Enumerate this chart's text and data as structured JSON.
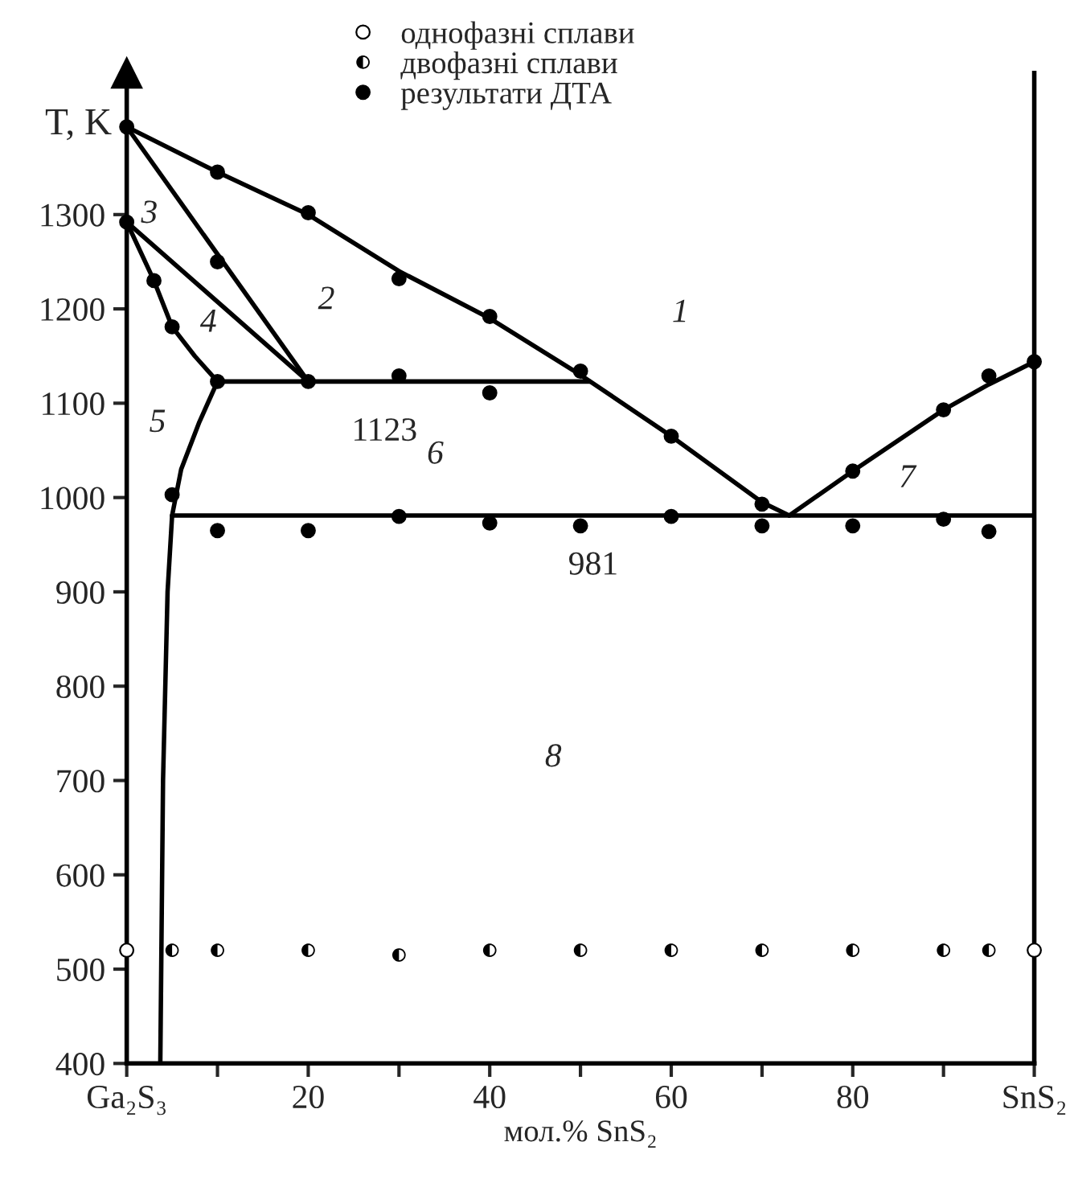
{
  "chart_data": {
    "type": "line",
    "ylabel": "T, K",
    "xlabel": "мол.% SnS₂",
    "xlim": [
      0,
      100
    ],
    "ylim": [
      400,
      1450
    ],
    "xticks": [
      {
        "value": 0,
        "label": "Ga₂S₃"
      },
      {
        "value": 10,
        "label": null
      },
      20,
      {
        "value": 30,
        "label": null
      },
      40,
      {
        "value": 50,
        "label": null
      },
      60,
      {
        "value": 70,
        "label": null
      },
      80,
      {
        "value": 90,
        "label": null
      },
      {
        "value": 100,
        "label": "SnS₂"
      }
    ],
    "yticks": [
      400,
      500,
      600,
      700,
      800,
      900,
      1000,
      1100,
      1200,
      1300
    ],
    "grid": false,
    "legend": "top",
    "line_style": "solid",
    "series": [
      {
        "color": "#000000",
        "x": [
          0,
          10,
          20,
          30,
          40,
          50,
          60,
          70,
          73
        ],
        "values": [
          1393,
          1345,
          1300,
          1240,
          1190,
          1130,
          1065,
          995,
          981
        ]
      },
      {
        "color": "#000000",
        "x": [
          0,
          20
        ],
        "values": [
          1393,
          1123
        ]
      },
      {
        "color": "#000000",
        "x": [
          0,
          20
        ],
        "values": [
          1292,
          1123
        ]
      },
      {
        "color": "#000000",
        "x": [
          0,
          3,
          5,
          7.5,
          10
        ],
        "values": [
          1292,
          1230,
          1181,
          1150,
          1123
        ]
      },
      {
        "color": "#000000",
        "x": [
          10,
          51
        ],
        "values": [
          1123,
          1123
        ]
      },
      {
        "color": "#000000",
        "x": [
          10,
          8,
          6,
          5,
          4.5,
          4,
          3.7
        ],
        "values": [
          1123,
          1080,
          1030,
          981,
          900,
          700,
          400
        ]
      },
      {
        "color": "#000000",
        "x": [
          5,
          100
        ],
        "values": [
          981,
          981
        ]
      },
      {
        "color": "#000000",
        "x": [
          73,
          80,
          90,
          95,
          100
        ],
        "values": [
          981,
          1028,
          1093,
          1120,
          1144
        ]
      },
      {
        "type": "scatter",
        "name": "однофазні сплави",
        "marker": "circle",
        "color": "#ffffff",
        "x": [
          0,
          100
        ],
        "values": [
          520,
          520
        ]
      },
      {
        "type": "scatter",
        "name": "двофазні сплави",
        "marker": "half circle",
        "color": "#000000",
        "x": [
          5,
          10,
          20,
          30,
          40,
          50,
          60,
          70,
          80,
          90,
          95
        ],
        "values": [
          520,
          520,
          520,
          515,
          520,
          520,
          520,
          520,
          520,
          520,
          520
        ]
      },
      {
        "type": "scatter",
        "name": "результати ДТА",
        "marker": "circle",
        "color": "#000000",
        "x": [
          0,
          10,
          20,
          30,
          40,
          50,
          60,
          70,
          0,
          3,
          5,
          10,
          20,
          10,
          30,
          40,
          5,
          10,
          20,
          30,
          40,
          50,
          60,
          70,
          80,
          90,
          95,
          80,
          90,
          95,
          100
        ],
        "values": [
          1393,
          1345,
          1302,
          1232,
          1192,
          1134,
          1065,
          993,
          1292,
          1230,
          1181,
          1250,
          1123,
          1123,
          1129,
          1111,
          1003,
          965,
          965,
          980,
          973,
          970,
          980,
          970,
          970,
          977,
          964,
          1028,
          1093,
          1129,
          1144
        ]
      }
    ],
    "annotations": [
      "1",
      "2",
      "3",
      "4",
      "5",
      "6",
      "7",
      "8",
      {
        "text": "1123",
        "x": 28.4,
        "y": 1123
      },
      {
        "text": "981",
        "x": 51.4,
        "y": 981
      }
    ]
  }
}
